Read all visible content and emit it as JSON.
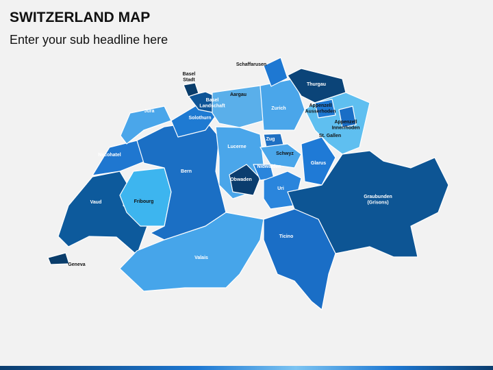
{
  "header": {
    "title": "SWITZERLAND MAP",
    "subtitle": "Enter your sub headline here"
  },
  "map": {
    "regions": [
      {
        "lines": [
          "Geneva"
        ]
      },
      {
        "lines": [
          "Vaud"
        ]
      },
      {
        "lines": [
          "Fribourg"
        ]
      },
      {
        "lines": [
          "Necohatel"
        ]
      },
      {
        "lines": [
          "Jura"
        ]
      },
      {
        "lines": [
          "Bern"
        ]
      },
      {
        "lines": [
          "Valais"
        ]
      },
      {
        "lines": [
          "Solothurn"
        ]
      },
      {
        "lines": [
          "Basel",
          "Landschaft"
        ]
      },
      {
        "lines": [
          "Basel",
          "Stadt"
        ]
      },
      {
        "lines": [
          "Aargau"
        ]
      },
      {
        "lines": [
          "Zurich"
        ]
      },
      {
        "lines": [
          "Schaffarusen"
        ]
      },
      {
        "lines": [
          "Thurgau"
        ]
      },
      {
        "lines": [
          "St. Gallen"
        ]
      },
      {
        "lines": [
          "Appenzell",
          "Ausserhoden"
        ]
      },
      {
        "lines": [
          "Appenzell",
          "Innerrhoden"
        ]
      },
      {
        "lines": [
          "Lucerne"
        ]
      },
      {
        "lines": [
          "Zug"
        ]
      },
      {
        "lines": [
          "Schwyz"
        ]
      },
      {
        "lines": [
          "Obwaden"
        ]
      },
      {
        "lines": [
          "Nidwalden"
        ]
      },
      {
        "lines": [
          "Uri"
        ]
      },
      {
        "lines": [
          "Glarus"
        ]
      },
      {
        "lines": [
          "Graubunden",
          "(Grisons)"
        ]
      },
      {
        "lines": [
          "Ticino"
        ]
      }
    ]
  }
}
